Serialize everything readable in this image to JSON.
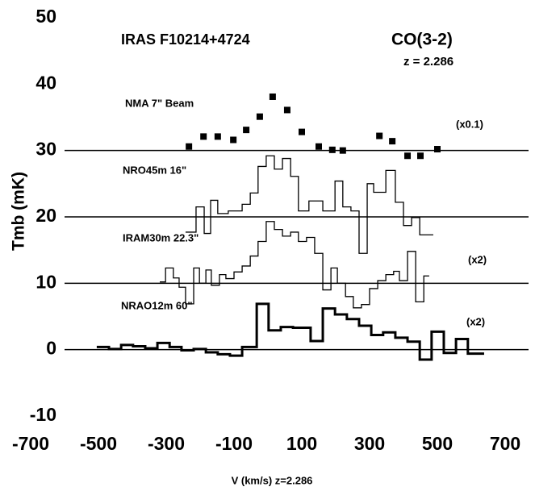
{
  "chart_data": {
    "type": "step",
    "xlabel": "V  (km/s)   z=2.286",
    "ylabel": "Tmb (mK)",
    "xlim": [
      -700,
      700
    ],
    "ylim": [
      -10,
      50
    ],
    "xticks": [
      -700,
      -500,
      -300,
      -100,
      100,
      300,
      500,
      700
    ],
    "yticks": [
      -10,
      0,
      10,
      20,
      30,
      40,
      50
    ],
    "hlines": [
      30,
      20,
      10,
      0
    ],
    "annotations": [
      "IRAS  F10214+4724",
      "CO(3-2)",
      "z  =  2.286",
      "NMA 7\" Beam",
      "(x0.1)",
      "NRO45m  16\"",
      "IRAM30m  22.3\"",
      "(x2)",
      "NRAO12m  60\"",
      "(x2)"
    ],
    "series": [
      {
        "name": "NMA",
        "kind": "scatter",
        "color": "#000000",
        "x": [
          -233,
          -190,
          -148,
          -102,
          -64,
          -24,
          14,
          57,
          100,
          150,
          190,
          221,
          329,
          367,
          412,
          450,
          500
        ],
        "values": [
          30.6,
          32.1,
          32.1,
          31.6,
          33.1,
          35.1,
          38.1,
          36.1,
          32.8,
          30.6,
          30.1,
          30.0,
          32.2,
          31.4,
          29.2,
          29.2,
          30.2
        ]
      },
      {
        "name": "NRO45m",
        "kind": "step",
        "color": "#000000",
        "width": 1.3,
        "bins": [
          -243,
          -212,
          -188,
          -169,
          -148,
          -117,
          -76,
          -52,
          -29,
          -5,
          19,
          43,
          67,
          90,
          121,
          162,
          198,
          221,
          245,
          269,
          293,
          312,
          348,
          376,
          400,
          424,
          448,
          488
        ],
        "values": [
          17.7,
          21.5,
          17.5,
          22.5,
          20.5,
          20.9,
          21.9,
          23.6,
          27.6,
          29.2,
          27.2,
          28.8,
          26.1,
          20.9,
          22.4,
          20.9,
          25.4,
          21.5,
          20.9,
          14.5,
          25.0,
          23.7,
          27.0,
          22.2,
          18.7,
          19.9,
          17.3
        ]
      },
      {
        "name": "IRAM30m",
        "kind": "step",
        "color": "#000000",
        "width": 1.3,
        "bins": [
          -319,
          -302,
          -279,
          -262,
          -243,
          -219,
          -202,
          -183,
          -167,
          -143,
          -124,
          -100,
          -76,
          -52,
          -29,
          -5,
          19,
          43,
          67,
          90,
          114,
          138,
          162,
          186,
          205,
          229,
          252,
          276,
          300,
          324,
          348,
          371,
          388,
          412,
          436,
          460,
          476
        ],
        "values": [
          10.2,
          12.3,
          10.8,
          9.4,
          6.9,
          12.3,
          10.0,
          12.0,
          9.7,
          11.3,
          10.7,
          11.7,
          12.6,
          14.1,
          16.3,
          19.3,
          18.1,
          17.1,
          17.7,
          16.3,
          16.9,
          14.5,
          9.0,
          12.3,
          10.0,
          8.0,
          6.3,
          6.8,
          9.2,
          10.4,
          11.3,
          11.8,
          10.4,
          14.8,
          7.2,
          11.1
        ]
      },
      {
        "name": "NRAO12m",
        "kind": "step",
        "color": "#000000",
        "width": 3,
        "bins": [
          -505,
          -469,
          -433,
          -398,
          -362,
          -326,
          -290,
          -255,
          -219,
          -183,
          -148,
          -112,
          -76,
          -33,
          2,
          38,
          74,
          126,
          162,
          198,
          233,
          269,
          305,
          340,
          376,
          412,
          448,
          483,
          519,
          555,
          590,
          638
        ],
        "values": [
          0.4,
          0.1,
          0.7,
          0.5,
          0.2,
          1.0,
          0.4,
          -0.1,
          0.1,
          -0.4,
          -0.7,
          -0.9,
          0.4,
          6.9,
          2.9,
          3.4,
          3.3,
          1.3,
          6.2,
          5.3,
          4.6,
          3.6,
          2.2,
          2.6,
          1.8,
          1.2,
          -1.5,
          2.7,
          -0.5,
          1.6,
          -0.6
        ]
      }
    ]
  }
}
